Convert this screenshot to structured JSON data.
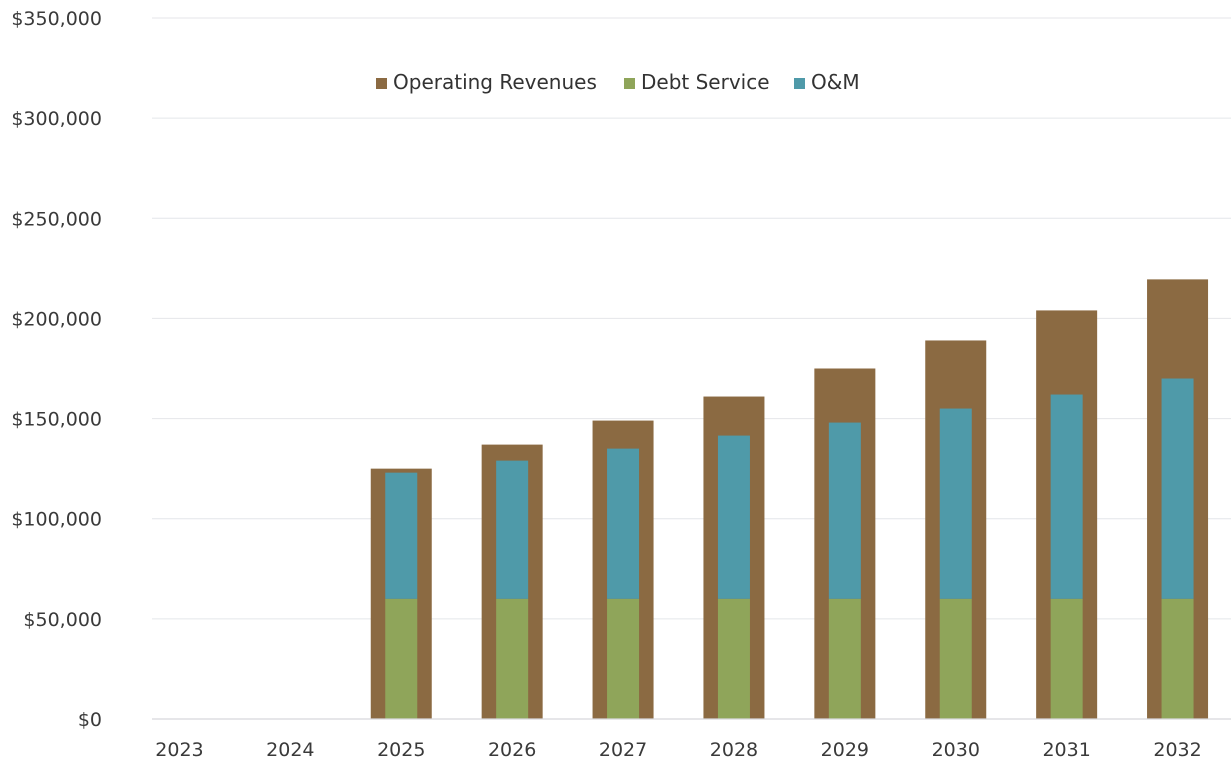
{
  "chart_data": {
    "type": "bar",
    "categories": [
      "2023",
      "2024",
      "2025",
      "2026",
      "2027",
      "2028",
      "2029",
      "2030",
      "2031",
      "2032"
    ],
    "ylim": [
      0,
      350000
    ],
    "y_ticks": [
      0,
      50000,
      100000,
      150000,
      200000,
      250000,
      300000,
      350000
    ],
    "y_tick_labels": [
      "$0",
      "$50,000",
      "$100,000",
      "$150,000",
      "$200,000",
      "$250,000",
      "$300,000",
      "$350,000"
    ],
    "grid": true,
    "legend_position": "top-center",
    "series": [
      {
        "name": "Operating Revenues",
        "color": "#8b6a42",
        "values": [
          0,
          0,
          125000,
          137000,
          149000,
          161000,
          175000,
          189000,
          204000,
          219500
        ]
      },
      {
        "name": "Debt Service",
        "color": "#8fa55a",
        "values": [
          0,
          0,
          60000,
          60000,
          60000,
          60000,
          60000,
          60000,
          60000,
          60000
        ]
      },
      {
        "name": "O&M",
        "color": "#4f9aa9",
        "values": [
          0,
          0,
          63000,
          69000,
          75000,
          81500,
          88000,
          95000,
          102000,
          110000
        ]
      }
    ]
  }
}
